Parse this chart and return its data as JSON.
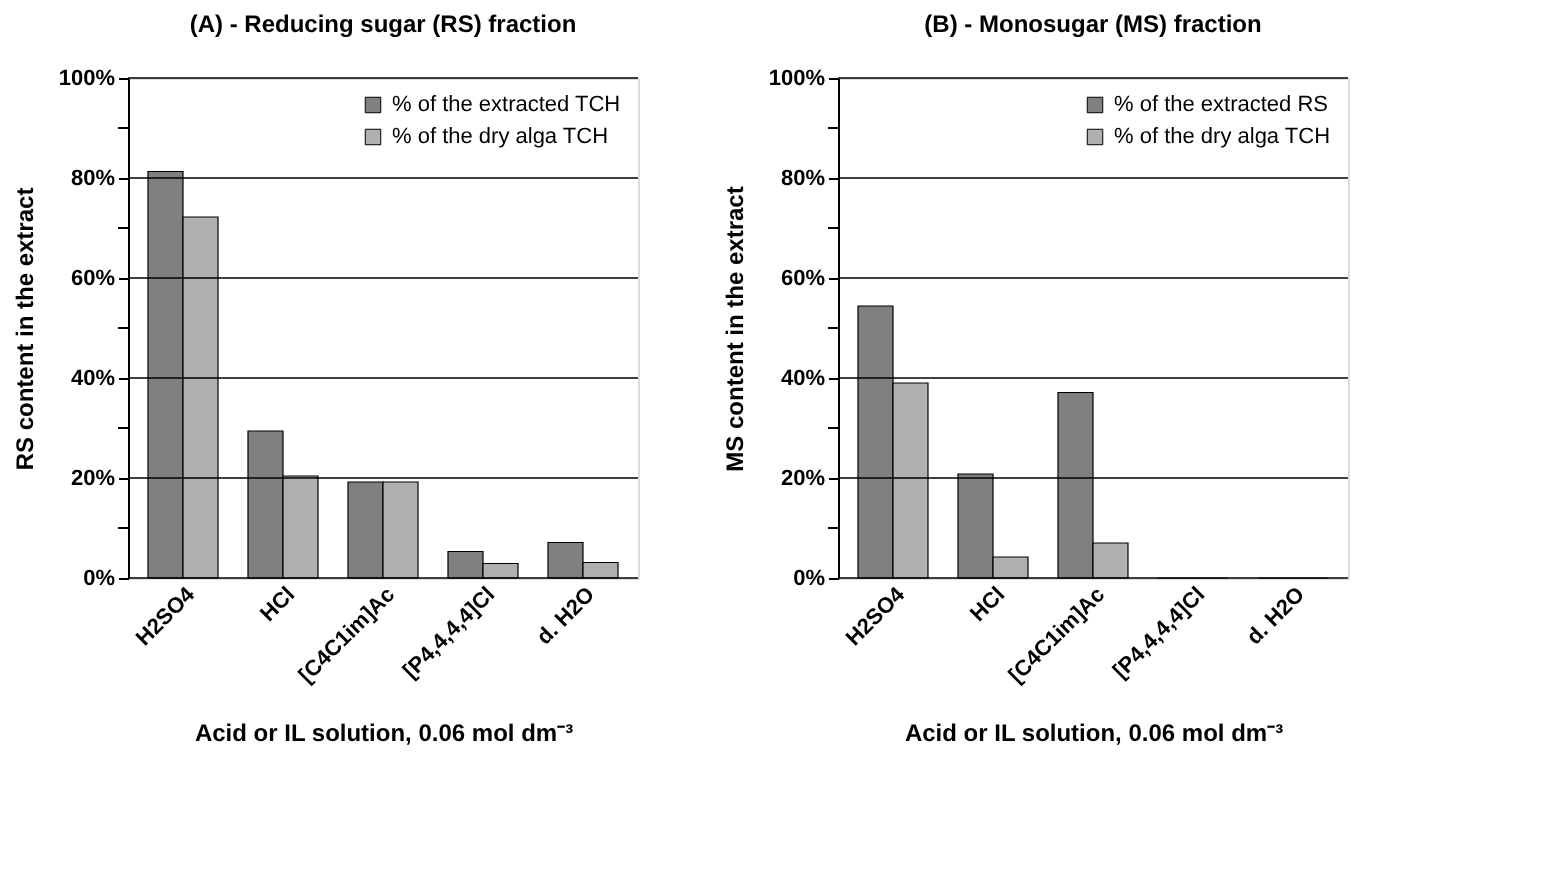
{
  "chart_data": [
    {
      "type": "bar",
      "title": "(A) - Reducing  sugar  (RS)  fraction",
      "xlabel": "Acid or IL solution, 0.06 mol dm⁻³",
      "ylabel": "RS  content  in  the  extract",
      "categories": [
        "H2SO4",
        "HCl",
        "[C4C1im]Ac",
        "[P4,4,4,4]Cl",
        "d. H2O"
      ],
      "series": [
        {
          "name": "% of the extracted TCH",
          "color": "#808080",
          "values": [
            81.3,
            29.4,
            19.2,
            5.3,
            7.1
          ]
        },
        {
          "name": "% of the dry alga TCH",
          "color": "#b0b0b0",
          "values": [
            72.2,
            20.4,
            19.2,
            2.9,
            3.1
          ]
        }
      ],
      "ylim": [
        0,
        100
      ],
      "yticks": [
        {
          "value": 0,
          "label": "0%"
        },
        {
          "value": 10,
          "label": null
        },
        {
          "value": 20,
          "label": "20%"
        },
        {
          "value": 30,
          "label": null
        },
        {
          "value": 40,
          "label": "40%"
        },
        {
          "value": 50,
          "label": null
        },
        {
          "value": 60,
          "label": "60%"
        },
        {
          "value": 70,
          "label": null
        },
        {
          "value": 80,
          "label": "80%"
        },
        {
          "value": 90,
          "label": null
        },
        {
          "value": 100,
          "label": "100%"
        }
      ],
      "grid": "y",
      "legend": "top right"
    },
    {
      "type": "bar",
      "title": "(B) - Monosugar  (MS)  fraction",
      "xlabel": "Acid or IL solution, 0.06 mol dm⁻³",
      "ylabel": "MS  content  in  the  extract",
      "categories": [
        "H2SO4",
        "HCl",
        "[C4C1im]Ac",
        "[P4,4,4,4]Cl",
        "d. H2O"
      ],
      "series": [
        {
          "name": "% of the extracted RS",
          "color": "#808080",
          "values": [
            54.4,
            20.8,
            37.1,
            0,
            0
          ]
        },
        {
          "name": "% of the dry alga TCH",
          "color": "#b0b0b0",
          "values": [
            39.0,
            4.2,
            7.0,
            0,
            0
          ]
        }
      ],
      "ylim": [
        0,
        100
      ],
      "yticks": [
        {
          "value": 0,
          "label": "0%"
        },
        {
          "value": 10,
          "label": null
        },
        {
          "value": 20,
          "label": "20%"
        },
        {
          "value": 30,
          "label": null
        },
        {
          "value": 40,
          "label": "40%"
        },
        {
          "value": 50,
          "label": null
        },
        {
          "value": 60,
          "label": "60%"
        },
        {
          "value": 70,
          "label": null
        },
        {
          "value": 80,
          "label": "80%"
        },
        {
          "value": 90,
          "label": null
        },
        {
          "value": 100,
          "label": "100%"
        }
      ],
      "grid": "y",
      "legend": "top right"
    }
  ]
}
